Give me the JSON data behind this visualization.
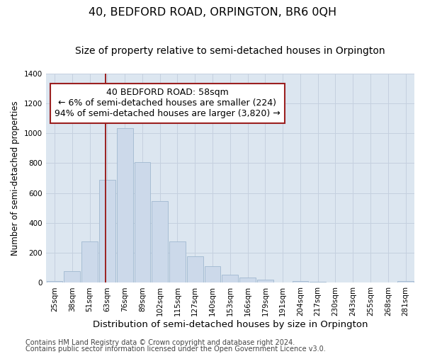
{
  "title": "40, BEDFORD ROAD, ORPINGTON, BR6 0QH",
  "subtitle": "Size of property relative to semi-detached houses in Orpington",
  "xlabel": "Distribution of semi-detached houses by size in Orpington",
  "ylabel": "Number of semi-detached properties",
  "categories": [
    "25sqm",
    "38sqm",
    "51sqm",
    "63sqm",
    "76sqm",
    "89sqm",
    "102sqm",
    "115sqm",
    "127sqm",
    "140sqm",
    "153sqm",
    "166sqm",
    "179sqm",
    "191sqm",
    "204sqm",
    "217sqm",
    "230sqm",
    "243sqm",
    "255sqm",
    "268sqm",
    "281sqm"
  ],
  "values": [
    10,
    80,
    275,
    690,
    1035,
    805,
    545,
    275,
    175,
    110,
    55,
    35,
    20,
    3,
    10,
    5,
    3,
    3,
    3,
    3,
    10
  ],
  "bar_color": "#ccd9ea",
  "bar_edge_color": "#a0b8d0",
  "grid_color": "#c5d0df",
  "background_color": "#dce6f0",
  "annotation_text": "40 BEDFORD ROAD: 58sqm\n← 6% of semi-detached houses are smaller (224)\n94% of semi-detached houses are larger (3,820) →",
  "vline_color": "#9b2020",
  "footer1": "Contains HM Land Registry data © Crown copyright and database right 2024.",
  "footer2": "Contains public sector information licensed under the Open Government Licence v3.0.",
  "ylim": [
    0,
    1400
  ],
  "yticks": [
    0,
    200,
    400,
    600,
    800,
    1000,
    1200,
    1400
  ],
  "title_fontsize": 11.5,
  "subtitle_fontsize": 10,
  "xlabel_fontsize": 9.5,
  "ylabel_fontsize": 8.5,
  "tick_fontsize": 7.5,
  "annotation_fontsize": 9,
  "footer_fontsize": 7
}
